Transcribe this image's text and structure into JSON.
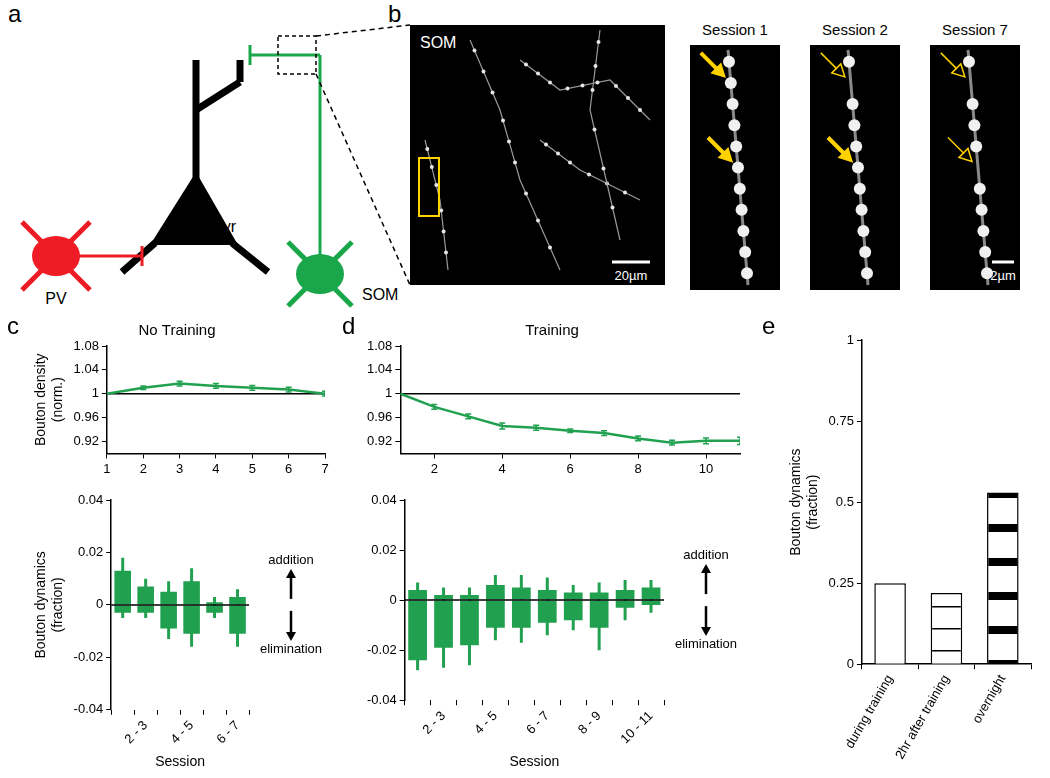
{
  "figure": {
    "a": {
      "panel": "a",
      "labels": {
        "pv": "PV",
        "pyr": "Pyr",
        "som": "SOM"
      }
    },
    "b": {
      "panel": "b",
      "overview_label": "SOM",
      "overview_scale_bar": "20µm",
      "sessions": [
        "Session 1",
        "Session 2",
        "Session 7"
      ],
      "zoom_scale_bar": "2µm"
    }
  },
  "chart_data": [
    {
      "panel": "c",
      "type": "line",
      "title": "No Training",
      "x": [
        1,
        2,
        3,
        4,
        5,
        6,
        7
      ],
      "xlim": [
        1,
        7
      ],
      "xticks": [
        1,
        2,
        3,
        4,
        5,
        6,
        7
      ],
      "ylabel": [
        "Bouton density",
        "(norm.)"
      ],
      "ylim": [
        0.9,
        1.08
      ],
      "yticks": [
        0.92,
        0.96,
        1,
        1.04,
        1.08
      ],
      "grid": false,
      "series": [
        {
          "color": "#21a150",
          "values": [
            1,
            1.01,
            1.017,
            1.013,
            1.01,
            1.007,
            1.0
          ],
          "errors": [
            0,
            0.003,
            0.004,
            0.004,
            0.004,
            0.004,
            0.004
          ]
        },
        {
          "color": "#000000",
          "values": [
            1,
            1,
            1,
            1,
            1,
            1,
            1
          ]
        }
      ]
    },
    {
      "type": "bar",
      "stacked": true,
      "categories": [
        null,
        "2 - 3",
        null,
        "4 - 5",
        null,
        "6 - 7"
      ],
      "xlabel": "Session",
      "ylabel": [
        "Bouton dynamics",
        "(fraction)"
      ],
      "ylim": [
        -0.04,
        0.04
      ],
      "yticks": [
        -0.04,
        -0.02,
        0,
        0.02,
        0.04
      ],
      "grid": false,
      "series": [
        {
          "name": "addition",
          "color": "#21a150",
          "values": [
            0.013,
            0.007,
            0.005,
            0.009,
            0.001,
            0.003
          ],
          "errors": [
            0.005,
            0.003,
            0.004,
            0.005,
            0.002,
            0.003
          ]
        },
        {
          "name": "elimination",
          "color": "#21a150",
          "values": [
            -0.003,
            -0.003,
            -0.009,
            -0.011,
            -0.003,
            -0.011
          ],
          "errors": [
            0.002,
            0.002,
            0.004,
            0.005,
            0.002,
            0.005
          ]
        }
      ]
    },
    {
      "panel": "d",
      "type": "line",
      "title": "Training",
      "x": [
        1,
        2,
        3,
        4,
        5,
        6,
        7,
        8,
        9,
        10,
        11
      ],
      "xlim": [
        1,
        11
      ],
      "xticks": [
        2,
        4,
        6,
        8,
        10
      ],
      "ylim": [
        0.9,
        1.08
      ],
      "yticks": [
        0.92,
        0.96,
        1,
        1.04,
        1.08
      ],
      "grid": false,
      "series": [
        {
          "color": "#21a150",
          "values": [
            1,
            0.978,
            0.962,
            0.946,
            0.943,
            0.938,
            0.934,
            0.925,
            0.918,
            0.921,
            0.921
          ],
          "errors": [
            0,
            0.004,
            0.004,
            0.005,
            0.004,
            0.003,
            0.004,
            0.004,
            0.004,
            0.005,
            0.006
          ]
        },
        {
          "color": "#000000",
          "values": [
            1,
            1,
            1,
            1,
            1,
            1,
            1,
            1,
            1,
            1,
            1
          ]
        }
      ]
    },
    {
      "type": "bar",
      "stacked": true,
      "categories": [
        null,
        "2 - 3",
        null,
        "4 - 5",
        null,
        "6 - 7",
        null,
        "8 - 9",
        null,
        "10 - 11"
      ],
      "xlabel": "Session",
      "ylim": [
        -0.04,
        0.04
      ],
      "yticks": [
        -0.04,
        -0.02,
        0,
        0.02,
        0.04
      ],
      "grid": false,
      "series": [
        {
          "name": "addition",
          "color": "#21a150",
          "values": [
            0.004,
            0.002,
            0.002,
            0.006,
            0.005,
            0.004,
            0.003,
            0.003,
            0.004,
            0.005
          ],
          "errors": [
            0.003,
            0.003,
            0.003,
            0.004,
            0.005,
            0.005,
            0.003,
            0.004,
            0.004,
            0.003
          ]
        },
        {
          "name": "elimination",
          "color": "#21a150",
          "values": [
            -0.024,
            -0.019,
            -0.018,
            -0.011,
            -0.011,
            -0.009,
            -0.008,
            -0.011,
            -0.003,
            -0.002
          ],
          "errors": [
            0.004,
            0.008,
            0.008,
            0.005,
            0.006,
            0.005,
            0.004,
            0.009,
            0.005,
            0.003
          ]
        }
      ]
    },
    {
      "panel": "e",
      "type": "bar",
      "categories": [
        "during training",
        "2hr after training",
        "overnight"
      ],
      "values": [
        0.25,
        0.22,
        0.53
      ],
      "colors": [
        "#ffffff",
        "#ffffff",
        "#ffffff"
      ],
      "ylabel": [
        "Bouton dynamics",
        "(fraction)"
      ],
      "ylim": [
        0,
        1
      ],
      "yticks": [
        0,
        0.25,
        0.5,
        0.75,
        1
      ],
      "grid": false
    }
  ]
}
